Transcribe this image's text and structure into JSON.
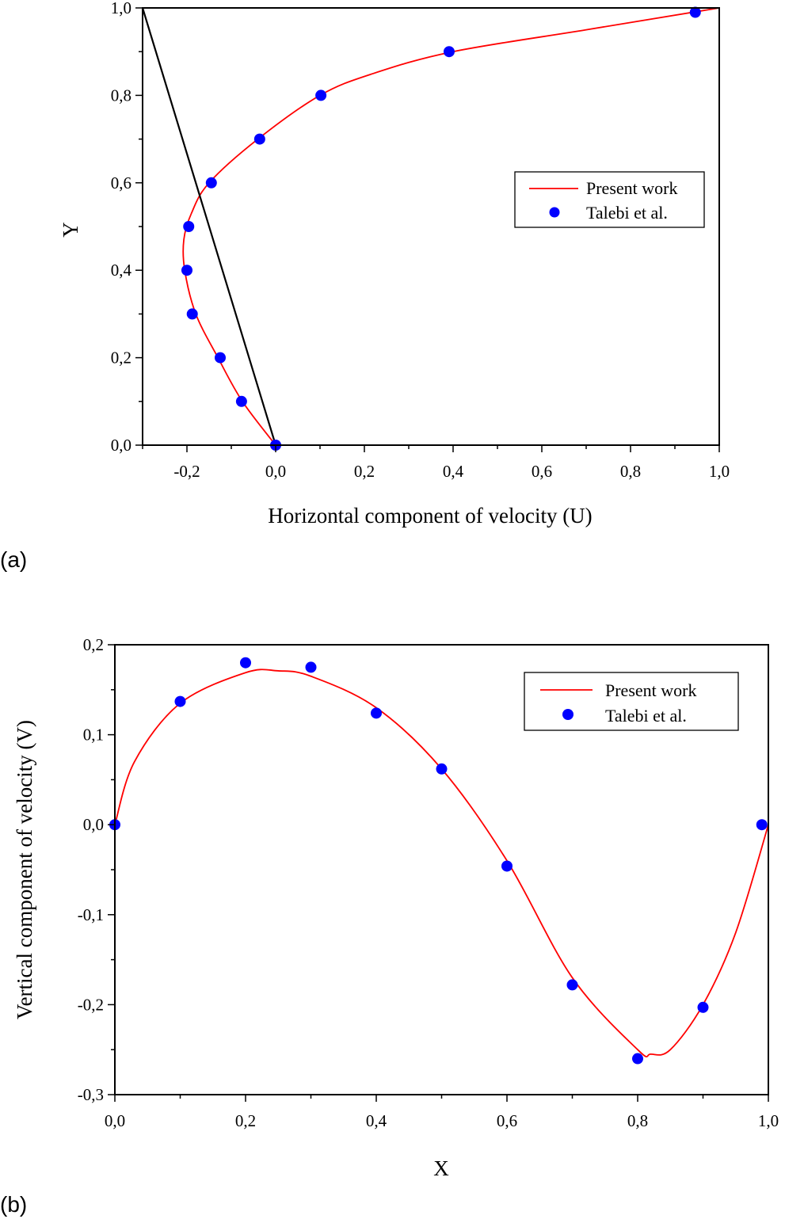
{
  "chart_data": [
    {
      "panel_label": "(a)",
      "type": "line",
      "xlabel": "Horizontal component of velocity (U)",
      "ylabel": "Y",
      "xlim": [
        -0.3,
        1.0
      ],
      "ylim": [
        0.0,
        1.0
      ],
      "xticks": [
        "-0,2",
        "0,0",
        "0,2",
        "0,4",
        "0,6",
        "0,8",
        "1,0"
      ],
      "yticks": [
        "0,0",
        "0,2",
        "0,4",
        "0,6",
        "0,8",
        "1,0"
      ],
      "legend_position": "right-middle",
      "series": [
        {
          "name": "Present work",
          "style": "line",
          "color": "#ff0000",
          "x": [
            0,
            -0.075,
            -0.13,
            -0.18,
            -0.205,
            -0.207,
            -0.19,
            -0.15,
            -0.04,
            0.1,
            0.22,
            0.4,
            0.7,
            1.0
          ],
          "y": [
            0,
            0.1,
            0.2,
            0.3,
            0.4,
            0.47,
            0.53,
            0.6,
            0.7,
            0.8,
            0.85,
            0.9,
            0.95,
            1.0
          ]
        },
        {
          "name": "Talebi et al.",
          "style": "marker",
          "color": "#0000ff",
          "x": [
            0.946,
            0.391,
            0.102,
            -0.036,
            -0.145,
            -0.196,
            -0.2,
            -0.188,
            -0.125,
            -0.077,
            0.0
          ],
          "y": [
            0.99,
            0.9,
            0.8,
            0.7,
            0.6,
            0.5,
            0.4,
            0.3,
            0.2,
            0.1,
            0.0
          ]
        },
        {
          "name": "",
          "style": "line",
          "color": "#000000",
          "x": [
            -0.3,
            0.0
          ],
          "y": [
            1.0,
            0.0
          ]
        }
      ]
    },
    {
      "panel_label": "(b)",
      "type": "line",
      "xlabel": "X",
      "ylabel": "Vertical component of velocity (V)",
      "xlim": [
        0.0,
        1.0
      ],
      "ylim": [
        -0.3,
        0.2
      ],
      "xticks": [
        "0,0",
        "0,2",
        "0,4",
        "0,6",
        "0,8",
        "1,0"
      ],
      "yticks": [
        "-0,3",
        "-0,2",
        "-0,1",
        "0,0",
        "0,1",
        "0,2"
      ],
      "legend_position": "top-right",
      "series": [
        {
          "name": "Present work",
          "style": "line",
          "color": "#ff0000",
          "x": [
            0,
            0.03,
            0.1,
            0.2,
            0.25,
            0.3,
            0.4,
            0.5,
            0.6,
            0.7,
            0.8,
            0.82,
            0.85,
            0.9,
            0.95,
            1.0
          ],
          "y": [
            0,
            0.07,
            0.135,
            0.169,
            0.171,
            0.165,
            0.13,
            0.062,
            -0.04,
            -0.17,
            -0.25,
            -0.255,
            -0.25,
            -0.2,
            -0.12,
            0
          ]
        },
        {
          "name": "Talebi et al.",
          "style": "marker",
          "color": "#0000ff",
          "x": [
            0.0,
            0.1,
            0.2,
            0.3,
            0.4,
            0.5,
            0.6,
            0.7,
            0.8,
            0.9,
            0.99
          ],
          "y": [
            0.0,
            0.137,
            0.18,
            0.175,
            0.124,
            0.062,
            -0.046,
            -0.178,
            -0.26,
            -0.203,
            0.0
          ]
        }
      ]
    }
  ]
}
